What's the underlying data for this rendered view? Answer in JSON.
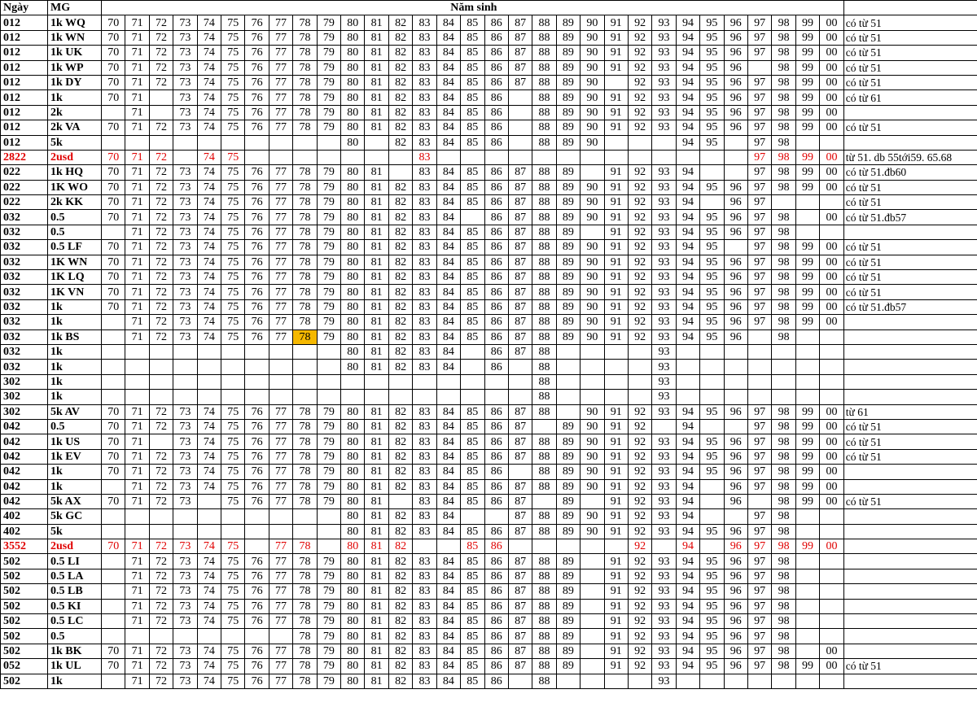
{
  "header": {
    "day": "Ngày",
    "mg": "MG",
    "years_title": "Năm sinh",
    "note": ""
  },
  "years": [
    "70",
    "71",
    "72",
    "73",
    "74",
    "75",
    "76",
    "77",
    "78",
    "79",
    "80",
    "81",
    "82",
    "83",
    "84",
    "85",
    "86",
    "87",
    "88",
    "89",
    "90",
    "91",
    "92",
    "93",
    "94",
    "95",
    "96",
    "97",
    "98",
    "99",
    "00"
  ],
  "colors": {
    "highlight_row_text": "#e00000",
    "marked_cell": "#f5b800"
  },
  "rows": [
    {
      "day": "012",
      "mg": "1k WQ",
      "years": "70 71 72 73 74 75 76 77 78 79 80 81 82 83 84 85 86 87 88 89 90 91 92 93 94 95 96 97 98 99 00",
      "note": "có từ 51"
    },
    {
      "day": "012",
      "mg": "1k WN",
      "years": "70 71 72 73 74 75 76 77 78 79 80 81 82 83 84 85 86 87 88 89 90 91 92 93 94 95 96 97 98 99 00",
      "note": "có từ 51"
    },
    {
      "day": "012",
      "mg": "1k UK",
      "years": "70 71 72 73 74 75 76 77 78 79 80 81 82 83 84 85 86 87 88 89 90 91 92 93 94 95 96 97 98 99 00",
      "note": "có từ 51"
    },
    {
      "day": "012",
      "mg": "1k WP",
      "years": "70 71 72 73 74 75 76 77 78 79 80 81 82 83 84 85 86 87 88 89 90 91 92 93 94 95 96 98 99 00",
      "note": "có từ 51"
    },
    {
      "day": "012",
      "mg": "1k DY",
      "years": "70 71 72 73 74 75 76 77 78 79 80 81 82 83 84 85 86 87 88 89 90 92 93 94 95 96 97 98 99 00",
      "note": "có từ 51"
    },
    {
      "day": "012",
      "mg": "1k",
      "years": "70 71 73 74 75 76 77 78 79 80 81 82 83 84 85 86 88 89 90 91 92 93 94 95 96 97 98 99 00",
      "note": "có từ 61"
    },
    {
      "day": "012",
      "mg": "2k",
      "years": "71 73 74 75 76 77 78 79 80 81 82 83 84 85 86 88 89 90 91 92 93 94 95 96 97 98 99 00",
      "note": ""
    },
    {
      "day": "012",
      "mg": "2k VA",
      "years": "70 71 72 73 74 75 76 77 78 79 80 81 82 83 84 85 86 88 89 90 91 92 93 94 95 96 97 98 99 00",
      "note": "có từ 51"
    },
    {
      "day": "012",
      "mg": "5k",
      "years": "80 82 83 84 85 86 88 89 90 94 95 97 98",
      "note": ""
    },
    {
      "day": "2822",
      "mg": "2usd",
      "years": "70 71 72 74 75 83 97 98 99 00",
      "note": "từ 51. db 55tới59. 65.68",
      "highlight": true
    },
    {
      "day": "022",
      "mg": "1k HQ",
      "years": "70 71 72 73 74 75 76 77 78 79 80 81 83 84 85 86 87 88 89 91 92 93 94 97 98 99 00",
      "note": "có từ 51.đb60"
    },
    {
      "day": "022",
      "mg": "1K WO",
      "years": "70 71 72 73 74 75 76 77 78 79 80 81 82 83 84 85 86 87 88 89 90 91 92 93 94 95 96 97 98 99 00",
      "note": "có từ 51"
    },
    {
      "day": "022",
      "mg": "2k KK",
      "years": "70 71 72 73 74 75 76 77 78 79 80 81 82 83 84 85 86 87 88 89 90 91 92 93 94 96 97",
      "note": "có từ 51"
    },
    {
      "day": "032",
      "mg": "0.5",
      "years": "70 71 72 73 74 75 76 77 78 79 80 81 82 83 84 86 87 88 89 90 91 92 93 94 95 96 97 98 00",
      "note": "có từ 51.đb57"
    },
    {
      "day": "032",
      "mg": "0.5",
      "years": "71 72 73 74 75 76 77 78 79 80 81 82 83 84 85 86 87 88 89 91 92 93 94 95 96 97 98",
      "note": ""
    },
    {
      "day": "032",
      "mg": "0.5 LF",
      "years": "70 71 72 73 74 75 76 77 78 79 80 81 82 83 84 85 86 87 88 89 90 91 92 93 94 95 97 98 99 00",
      "note": "có từ 51"
    },
    {
      "day": "032",
      "mg": "1K WN",
      "years": "70 71 72 73 74 75 76 77 78 79 80 81 82 83 84 85 86 87 88 89 90 91 92 93 94 95 96 97 98 99 00",
      "note": "có từ 51"
    },
    {
      "day": "032",
      "mg": "1K LQ",
      "years": "70 71 72 73 74 75 76 77 78 79 80 81 82 83 84 85 86 87 88 89 90 91 92 93 94 95 96 97 98 99 00",
      "note": "có từ 51"
    },
    {
      "day": "032",
      "mg": "1K VN",
      "years": "70 71 72 73 74 75 76 77 78 79 80 81 82 83 84 85 86 87 88 89 90 91 92 93 94 95 96 97 98 99 00",
      "note": "có từ 51"
    },
    {
      "day": "032",
      "mg": "1k",
      "years": "70 71 72 73 74 75 76 77 78 79 80 81 82 83 84 85 86 87 88 89 90 91 92 93 94 95 96 97 98 99 00",
      "note": "có từ 51.đb57"
    },
    {
      "day": "032",
      "mg": "1k",
      "years": "71 72 73 74 75 76 77 78 79 80 81 82 83 84 85 86 87 88 89 90 91 92 93 94 95 96 97 98 99 00",
      "note": ""
    },
    {
      "day": "032",
      "mg": "1k BS",
      "years": "71 72 73 74 75 76 77 78 79 80 81 82 83 84 85 86 87 88 89 90 91 92 93 94 95 96 98",
      "note": "",
      "marked": [
        "78"
      ]
    },
    {
      "day": "032",
      "mg": "1k",
      "years": "80 81 82 83 84 86 87 88 93",
      "note": ""
    },
    {
      "day": "032",
      "mg": "1k",
      "years": "80 81 82 83 84 86 88 93",
      "note": ""
    },
    {
      "day": "302",
      "mg": "1k",
      "years": "88 93",
      "note": ""
    },
    {
      "day": "302",
      "mg": "1k",
      "years": "88 93",
      "note": ""
    },
    {
      "day": "302",
      "mg": "5k AV",
      "years": "70 71 72 73 74 75 76 77 78 79 80 81 82 83 84 85 86 87 88 90 91 92 93 94 95 96 97 98 99 00",
      "note": "từ 61"
    },
    {
      "day": "042",
      "mg": "0.5",
      "years": "70 71 72 73 74 75 76 77 78 79 80 81 82 83 84 85 86 87 89 90 91 92 94 97 98 99 00",
      "note": "có từ 51"
    },
    {
      "day": "042",
      "mg": "1k US",
      "years": "70 71 73 74 75 76 77 78 79 80 81 82 83 84 85 86 87 88 89 90 91 92 93 94 95 96 97 98 99 00",
      "note": "có từ 51"
    },
    {
      "day": "042",
      "mg": "1k EV",
      "years": "70 71 72 73 74 75 76 77 78 79 80 81 82 83 84 85 86 87 88 89 90 91 92 93 94 95 96 97 98 99 00",
      "note": "có từ 51"
    },
    {
      "day": "042",
      "mg": "1k",
      "years": "70 71 72 73 74 75 76 77 78 79 80 81 82 83 84 85 86 88 89 90 91 92 93 94 95 96 97 98 99 00",
      "note": ""
    },
    {
      "day": "042",
      "mg": "1k",
      "years": "71 72 73 74 75 76 77 78 79 80 81 82 83 84 85 86 87 88 89 90 91 92 93 94 96 97 98 99 00",
      "note": ""
    },
    {
      "day": "042",
      "mg": "5k AX",
      "years": "70 71 72 73 75 76 77 78 79 80 81 83 84 85 86 87 89 91 92 93 94 96 98 99 00",
      "note": "có từ 51"
    },
    {
      "day": "402",
      "mg": "5k GC",
      "years": "80 81 82 83 84 87 88 89 90 91 92 93 94 97 98",
      "note": ""
    },
    {
      "day": "402",
      "mg": "5k",
      "years": "80 81 82 83 84 85 86 87 88 89 90 91 92 93 94 95 96 97 98",
      "note": ""
    },
    {
      "day": "3552",
      "mg": "2usd",
      "years": "70 71 72 73 74 75 77 78 80 81 82 85 86 92 94 96 97 98 99 00",
      "note": "",
      "highlight": true
    },
    {
      "day": "502",
      "mg": "0.5 LI",
      "years": "71 72 73 74 75 76 77 78 79 80 81 82 83 84 85 86 87 88 89 91 92 93 94 95 96 97 98",
      "note": ""
    },
    {
      "day": "502",
      "mg": "0.5 LA",
      "years": "71 72 73 74 75 76 77 78 79 80 81 82 83 84 85 86 87 88 89 91 92 93 94 95 96 97 98",
      "note": ""
    },
    {
      "day": "502",
      "mg": "0.5 LB",
      "years": "71 72 73 74 75 76 77 78 79 80 81 82 83 84 85 86 87 88 89 91 92 93 94 95 96 97 98",
      "note": ""
    },
    {
      "day": "502",
      "mg": "0.5 KI",
      "years": "71 72 73 74 75 76 77 78 79 80 81 82 83 84 85 86 87 88 89 91 92 93 94 95 96 97 98",
      "note": ""
    },
    {
      "day": "502",
      "mg": "0.5 LC",
      "years": "71 72 73 74 75 76 77 78 79 80 81 82 83 84 85 86 87 88 89 91 92 93 94 95 96 97 98",
      "note": ""
    },
    {
      "day": "502",
      "mg": "0.5",
      "years": "78 79 80 81 82 83 84 85 86 87 88 89 91 92 93 94 95 96 97 98",
      "note": ""
    },
    {
      "day": "502",
      "mg": "1k BK",
      "years": "70 71 72 73 74 75 76 77 78 79 80 81 82 83 84 85 86 87 88 89 91 92 93 94 95 96 97 98 00",
      "note": ""
    },
    {
      "day": "052",
      "mg": "1k UL",
      "years": "70 71 72 73 74 75 76 77 78 79 80 81 82 83 84 85 86 87 88 89 91 92 93 94 95 96 97 98 99 00",
      "note": "có từ 51"
    },
    {
      "day": "502",
      "mg": "1k",
      "years": "71 72 73 74 75 76 77 78 79 80 81 82 83 84 85 86 88 93",
      "note": ""
    }
  ]
}
